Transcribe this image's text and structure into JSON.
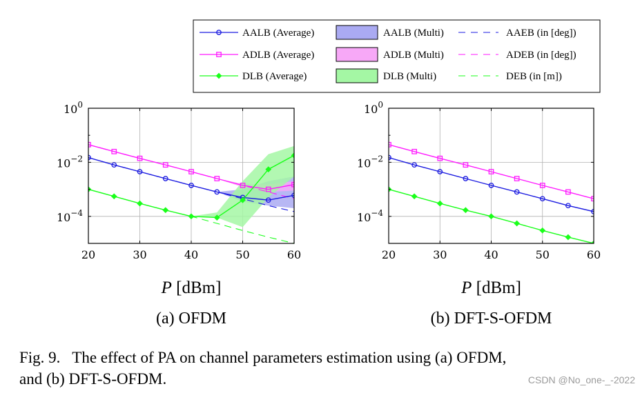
{
  "figure": {
    "caption_line1": "Fig. 9.   The effect of PA on channel parameters estimation using (a) OFDM,",
    "caption_line2": "and (b) DFT-S-OFDM.",
    "watermark": "CSDN @No_one-_-2022",
    "colors": {
      "blue": "#1a1ae0",
      "magenta": "#ff1aff",
      "green": "#1aff1a",
      "band_blue": "#aaaaf2",
      "band_magenta": "#f7a8f7",
      "band_green": "#a4f7a4",
      "grid": "#b0b0b0"
    }
  },
  "legend": {
    "items": [
      {
        "label": "AALB (Average)",
        "kind": "line-marker",
        "marker": "circle",
        "color": "blue"
      },
      {
        "label": "AALB (Multi)",
        "kind": "band",
        "color": "band_blue"
      },
      {
        "label": "AAEB (in [deg])",
        "kind": "dashed",
        "color": "blue"
      },
      {
        "label": "ADLB (Average)",
        "kind": "line-marker",
        "marker": "square",
        "color": "magenta"
      },
      {
        "label": "ADLB (Multi)",
        "kind": "band",
        "color": "band_magenta"
      },
      {
        "label": "ADEB (in [deg])",
        "kind": "dashed",
        "color": "magenta"
      },
      {
        "label": "DLB (Average)",
        "kind": "line-marker",
        "marker": "diamond",
        "color": "green"
      },
      {
        "label": "DLB (Multi)",
        "kind": "band",
        "color": "band_green"
      },
      {
        "label": "DEB (in [m])",
        "kind": "dashed",
        "color": "green"
      }
    ]
  },
  "chart_data": [
    {
      "type": "line",
      "subtitle": "(a) OFDM",
      "xlabel_var": "P",
      "xlabel_unit": "[dBm]",
      "xlim": [
        20,
        60
      ],
      "ylim_exp": [
        -5,
        0
      ],
      "yscale": "log",
      "xticks": [
        "20",
        "30",
        "40",
        "50",
        "60"
      ],
      "yticks": [
        {
          "base": "10",
          "exp": "0",
          "value_exp": 0
        },
        {
          "base": "10",
          "exp": "−2",
          "value_exp": -2
        },
        {
          "base": "10",
          "exp": "−4",
          "value_exp": -4
        }
      ],
      "grid": true,
      "x": [
        20,
        25,
        30,
        35,
        40,
        45,
        50,
        55,
        60
      ],
      "series": [
        {
          "name": "AALB (Average)",
          "color": "blue",
          "marker": "circle",
          "kind": "solid",
          "values": [
            0.015,
            0.008,
            0.0045,
            0.0025,
            0.0014,
            0.0008,
            0.0005,
            0.0004,
            0.0006
          ]
        },
        {
          "name": "ADLB (Average)",
          "color": "magenta",
          "marker": "square",
          "kind": "solid",
          "values": [
            0.045,
            0.025,
            0.014,
            0.008,
            0.0045,
            0.0025,
            0.0014,
            0.001,
            0.0015
          ]
        },
        {
          "name": "DLB (Average)",
          "color": "green",
          "marker": "diamond",
          "kind": "solid",
          "values": [
            0.001,
            0.00055,
            0.0003,
            0.00017,
            0.0001,
            9e-05,
            0.0004,
            0.0055,
            0.018
          ]
        },
        {
          "name": "AAEB (in [deg])",
          "color": "blue",
          "kind": "dashed",
          "values": [
            0.015,
            0.008,
            0.0045,
            0.0025,
            0.0014,
            0.0008,
            0.00045,
            0.00025,
            0.00015
          ]
        },
        {
          "name": "ADEB (in [deg])",
          "color": "magenta",
          "kind": "dashed",
          "values": [
            0.045,
            0.025,
            0.014,
            0.008,
            0.0045,
            0.0025,
            0.0014,
            0.0008,
            0.00045
          ]
        },
        {
          "name": "DEB (in [m])",
          "color": "green",
          "kind": "dashed",
          "values": [
            0.001,
            0.00055,
            0.0003,
            0.00017,
            0.0001,
            5.5e-05,
            3e-05,
            1.7e-05,
            1e-05
          ]
        }
      ],
      "bands": [
        {
          "name": "AALB (Multi)",
          "color": "band_blue",
          "x": [
            45,
            50,
            55,
            60
          ],
          "lower": [
            0.0008,
            0.00035,
            0.00025,
            0.0002
          ],
          "upper": [
            0.0008,
            0.001,
            0.002,
            0.003
          ]
        },
        {
          "name": "ADLB (Multi)",
          "color": "band_magenta",
          "x": [
            45,
            50,
            55,
            60
          ],
          "lower": [
            0.0025,
            0.0012,
            0.0008,
            0.0009
          ],
          "upper": [
            0.0025,
            0.0016,
            0.0015,
            0.002
          ]
        },
        {
          "name": "DLB (Multi)",
          "color": "band_green",
          "x": [
            40,
            45,
            50,
            55,
            60
          ],
          "lower": [
            0.0001,
            9e-05,
            4e-05,
            0.0005,
            0.003
          ],
          "upper": [
            0.0001,
            0.00014,
            0.002,
            0.02,
            0.04
          ]
        }
      ]
    },
    {
      "type": "line",
      "subtitle": "(b) DFT-S-OFDM",
      "xlabel_var": "P",
      "xlabel_unit": "[dBm]",
      "xlim": [
        20,
        60
      ],
      "ylim_exp": [
        -5,
        0
      ],
      "yscale": "log",
      "xticks": [
        "20",
        "30",
        "40",
        "50",
        "60"
      ],
      "yticks": [
        {
          "base": "10",
          "exp": "0",
          "value_exp": 0
        },
        {
          "base": "10",
          "exp": "−2",
          "value_exp": -2
        },
        {
          "base": "10",
          "exp": "−4",
          "value_exp": -4
        }
      ],
      "grid": true,
      "x": [
        20,
        25,
        30,
        35,
        40,
        45,
        50,
        55,
        60
      ],
      "series": [
        {
          "name": "AALB (Average)",
          "color": "blue",
          "marker": "circle",
          "kind": "solid",
          "values": [
            0.015,
            0.008,
            0.0045,
            0.0025,
            0.0014,
            0.0008,
            0.00045,
            0.00025,
            0.00015
          ]
        },
        {
          "name": "ADLB (Average)",
          "color": "magenta",
          "marker": "square",
          "kind": "solid",
          "values": [
            0.045,
            0.025,
            0.014,
            0.008,
            0.0045,
            0.0025,
            0.0014,
            0.0008,
            0.00045
          ]
        },
        {
          "name": "DLB (Average)",
          "color": "green",
          "marker": "diamond",
          "kind": "solid",
          "values": [
            0.001,
            0.00055,
            0.0003,
            0.00017,
            0.0001,
            5.5e-05,
            3e-05,
            1.7e-05,
            1e-05
          ]
        }
      ],
      "bands": []
    }
  ]
}
